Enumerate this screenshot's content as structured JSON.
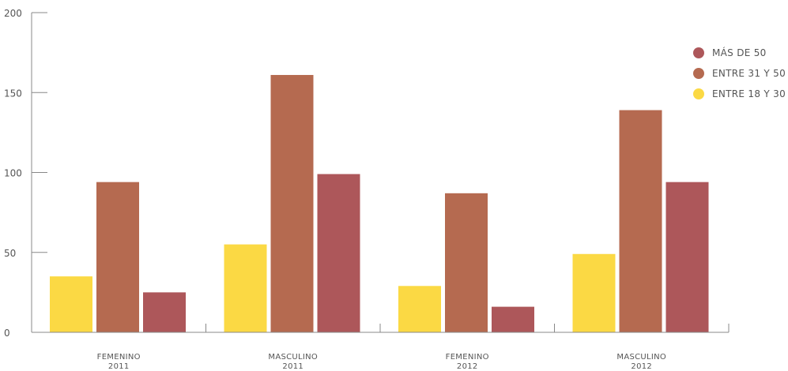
{
  "chart_data": {
    "type": "bar",
    "categories": [
      {
        "line1": "FEMENINO",
        "line2": "2011"
      },
      {
        "line1": "MASCULINO",
        "line2": "2011"
      },
      {
        "line1": "FEMENINO",
        "line2": "2012"
      },
      {
        "line1": "MASCULINO",
        "line2": "2012"
      }
    ],
    "series": [
      {
        "name": "ENTRE 18 Y 30",
        "color": "#fbd944",
        "values": [
          35,
          55,
          29,
          49
        ]
      },
      {
        "name": "ENTRE 31 Y 50",
        "color": "#b56a50",
        "values": [
          94,
          161,
          87,
          139
        ]
      },
      {
        "name": "MÁS DE 50",
        "color": "#ad575a",
        "values": [
          25,
          99,
          16,
          94
        ]
      }
    ],
    "legend_order": [
      2,
      1,
      0
    ],
    "y_ticks": [
      0,
      50,
      100,
      150,
      200
    ],
    "ylim": [
      0,
      200
    ],
    "grid": false,
    "legend_position": "top-right"
  }
}
